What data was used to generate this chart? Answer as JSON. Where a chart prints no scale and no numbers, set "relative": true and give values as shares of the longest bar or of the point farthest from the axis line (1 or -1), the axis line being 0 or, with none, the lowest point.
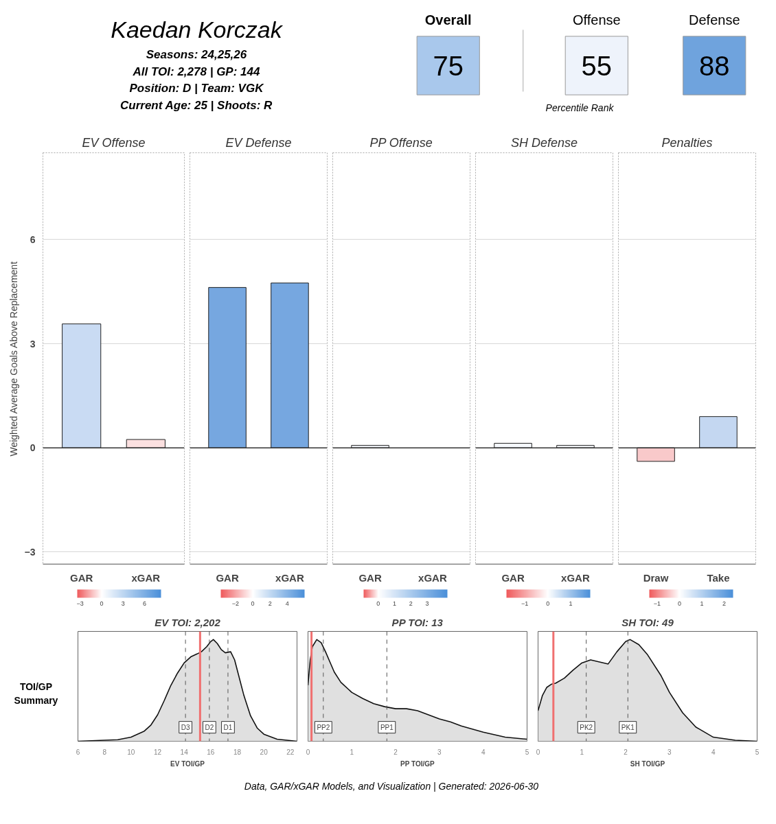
{
  "chart_data": [
    {
      "type": "other",
      "title": "Kaedan Korczak",
      "subtitle": "Percentile Rank",
      "annotations": [
        "Seasons: 24,25,26",
        "All TOI: 2,278 | GP: 144",
        "Position: D | Team: VGK",
        "Current Age: 25 | Shoots: R"
      ],
      "categories": [
        "Overall",
        "Offense",
        "Defense"
      ],
      "values": [
        75,
        55,
        88
      ],
      "colors": [
        "#a9c8ec",
        "#eef3fb",
        "#6fa3dd"
      ],
      "data_labels": true
    },
    {
      "type": "bar",
      "title": "EV Offense",
      "ylabel": "Weighted Average Goals Above Replacement",
      "categories": [
        "GAR",
        "xGAR"
      ],
      "values": [
        3.57,
        0.24
      ],
      "colors": [
        "#c9dbf3",
        "#fbe0e0"
      ],
      "ylim": [
        -3.35,
        8.5
      ],
      "yticks": [
        -3,
        0,
        3,
        6
      ],
      "grid": "y",
      "ref_lines": [
        {
          "axis": "y",
          "value": 0,
          "color": "#333333"
        }
      ],
      "clim": [
        -3.4,
        8.3
      ],
      "cticks": [
        -3,
        0,
        3,
        6
      ]
    },
    {
      "type": "bar",
      "title": "EV Defense",
      "categories": [
        "GAR",
        "xGAR"
      ],
      "values": [
        4.62,
        4.75
      ],
      "colors": [
        "#76a7e0",
        "#76a7e0"
      ],
      "ylim": [
        -3.35,
        8.5
      ],
      "yticks": [
        -3,
        0,
        3,
        6
      ],
      "grid": "y",
      "tick_labels": "x",
      "ref_lines": [
        {
          "axis": "y",
          "value": 0,
          "color": "#333333"
        }
      ],
      "clim": [
        -3.7,
        6.0
      ],
      "cticks": [
        -2,
        0,
        2,
        4
      ]
    },
    {
      "type": "bar",
      "title": "PP Offense",
      "categories": [
        "GAR",
        "xGAR"
      ],
      "values": [
        0.07,
        null
      ],
      "colors": [
        "#f4f7fc",
        "#f8fafd"
      ],
      "ylim": [
        -3.35,
        8.5
      ],
      "yticks": [
        -3,
        0,
        3,
        6
      ],
      "grid": "y",
      "tick_labels": "x",
      "ref_lines": [
        {
          "axis": "y",
          "value": 0,
          "color": "#333333"
        }
      ],
      "clim": [
        -0.9,
        4.25
      ],
      "cticks": [
        0,
        1,
        2,
        3
      ]
    },
    {
      "type": "bar",
      "title": "SH Defense",
      "categories": [
        "GAR",
        "xGAR"
      ],
      "values": [
        0.13,
        0.07
      ],
      "colors": [
        "#f6f9fd",
        "#f8fafd"
      ],
      "ylim": [
        -3.35,
        8.5
      ],
      "yticks": [
        -3,
        0,
        3,
        6
      ],
      "grid": "y",
      "tick_labels": "x",
      "ref_lines": [
        {
          "axis": "y",
          "value": 0,
          "color": "#333333"
        }
      ],
      "clim": [
        -1.8,
        1.85
      ],
      "cticks": [
        -1,
        0,
        1
      ]
    },
    {
      "type": "bar",
      "title": "Penalties",
      "categories": [
        "Draw",
        "Take"
      ],
      "values": [
        -0.39,
        0.9
      ],
      "colors": [
        "#f9c9ca",
        "#c4d7f1"
      ],
      "ylim": [
        -3.35,
        8.5
      ],
      "yticks": [
        -3,
        0,
        3,
        6
      ],
      "grid": "y",
      "tick_labels": "x",
      "ref_lines": [
        {
          "axis": "y",
          "value": 0,
          "color": "#333333"
        }
      ],
      "clim": [
        -1.35,
        2.4
      ],
      "cticks": [
        -1,
        0,
        1,
        2
      ]
    },
    {
      "type": "area",
      "title": "EV TOI: 2,202",
      "xlabel": "EV TOI/GP",
      "relative": true,
      "color": "#e0e0e0",
      "annotations": [
        "TOI/GP Summary"
      ],
      "x": [
        6,
        7,
        8,
        9,
        10,
        11,
        11.5,
        12,
        12.5,
        13,
        13.5,
        14,
        14.5,
        15,
        15.3,
        15.7,
        16,
        16.2,
        16.5,
        16.8,
        17.1,
        17.5,
        17.8,
        18.1,
        18.5,
        19,
        19.5,
        20,
        21,
        22.5
      ],
      "values": [
        0.0,
        0.005,
        0.01,
        0.015,
        0.04,
        0.1,
        0.16,
        0.26,
        0.4,
        0.55,
        0.67,
        0.77,
        0.83,
        0.86,
        0.88,
        0.93,
        0.98,
        1.0,
        0.96,
        0.9,
        0.87,
        0.88,
        0.8,
        0.65,
        0.45,
        0.25,
        0.13,
        0.07,
        0.02,
        0.0
      ],
      "xlim": [
        6,
        22.5
      ],
      "xticks": [
        6,
        8,
        10,
        12,
        14,
        16,
        18,
        20,
        22
      ],
      "ref_lines": [
        {
          "axis": "x",
          "value": 15.2,
          "color": "#f07070"
        },
        {
          "axis": "x",
          "value": 14.1,
          "label": "D3",
          "line_style": "dashed"
        },
        {
          "axis": "x",
          "value": 15.9,
          "label": "D2",
          "line_style": "dashed"
        },
        {
          "axis": "x",
          "value": 17.3,
          "label": "D1",
          "line_style": "dashed"
        }
      ]
    },
    {
      "type": "area",
      "title": "PP TOI: 13",
      "xlabel": "PP TOI/GP",
      "relative": true,
      "color": "#e0e0e0",
      "x": [
        0,
        0.05,
        0.1,
        0.2,
        0.3,
        0.4,
        0.5,
        0.6,
        0.75,
        1.0,
        1.25,
        1.5,
        1.75,
        2.0,
        2.25,
        2.5,
        2.75,
        3.0,
        3.25,
        3.5,
        4.0,
        4.5,
        5.0
      ],
      "values": [
        0.55,
        0.8,
        0.93,
        1.0,
        0.97,
        0.88,
        0.78,
        0.68,
        0.58,
        0.48,
        0.42,
        0.37,
        0.34,
        0.32,
        0.32,
        0.3,
        0.26,
        0.22,
        0.19,
        0.15,
        0.09,
        0.04,
        0.02
      ],
      "xlim": [
        0,
        5
      ],
      "xticks": [
        0,
        1,
        2,
        3,
        4,
        5
      ],
      "ref_lines": [
        {
          "axis": "x",
          "value": 0.08,
          "color": "#f07070"
        },
        {
          "axis": "x",
          "value": 0.35,
          "label": "PP2",
          "line_style": "dashed"
        },
        {
          "axis": "x",
          "value": 1.8,
          "label": "PP1",
          "line_style": "dashed"
        }
      ]
    },
    {
      "type": "area",
      "title": "SH TOI: 49",
      "xlabel": "SH TOI/GP",
      "relative": true,
      "color": "#e0e0e0",
      "annotations": [
        "Data, GAR/xGAR Models, and Visualization | Generated: 2026-06-30"
      ],
      "x": [
        0,
        0.1,
        0.2,
        0.3,
        0.4,
        0.6,
        0.8,
        1.0,
        1.2,
        1.4,
        1.6,
        1.8,
        2.0,
        2.1,
        2.3,
        2.5,
        2.8,
        3.0,
        3.3,
        3.6,
        4.0,
        4.5,
        5.0
      ],
      "values": [
        0.3,
        0.45,
        0.53,
        0.56,
        0.57,
        0.62,
        0.7,
        0.77,
        0.8,
        0.78,
        0.76,
        0.88,
        0.98,
        1.0,
        0.95,
        0.85,
        0.65,
        0.48,
        0.28,
        0.14,
        0.04,
        0.01,
        0.0
      ],
      "xlim": [
        0,
        5
      ],
      "xticks": [
        0,
        1,
        2,
        3,
        4,
        5
      ],
      "ref_lines": [
        {
          "axis": "x",
          "value": 0.35,
          "color": "#f07070"
        },
        {
          "axis": "x",
          "value": 1.1,
          "label": "PK2",
          "line_style": "dashed"
        },
        {
          "axis": "x",
          "value": 2.05,
          "label": "PK1",
          "line_style": "dashed"
        }
      ]
    }
  ]
}
